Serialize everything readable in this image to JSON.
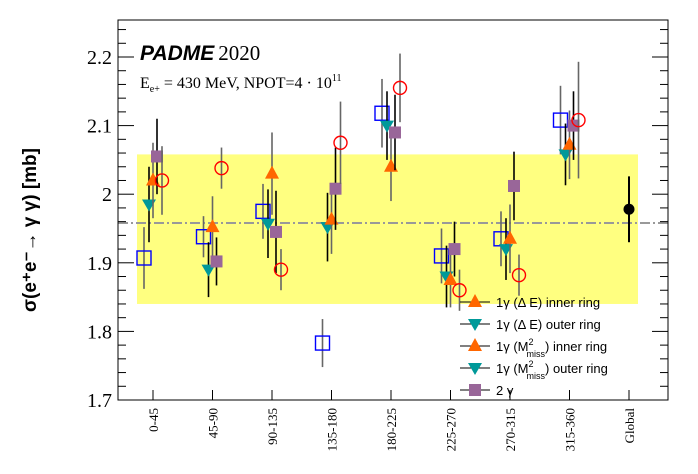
{
  "chart_data": {
    "type": "scatter",
    "title": "PADME",
    "title_year": "2020",
    "subtitle_prefix": "E",
    "subtitle_sub": "e+",
    "subtitle_main": " = 430 MeV, NPOT=4 · 10",
    "subtitle_sup": "11",
    "ylabel": "σ(e⁺e⁻→ γ γ) [mb]",
    "ylim": [
      1.7,
      2.25
    ],
    "yticks": [
      "1.7",
      "1.8",
      "1.9",
      "2",
      "2.1",
      "2.2"
    ],
    "categories": [
      "0-45",
      "45-90",
      "90-135",
      "135-180",
      "180-225",
      "225-270",
      "270-315",
      "315-360",
      "Global"
    ],
    "band": [
      1.84,
      2.058
    ],
    "band_color": "#ffff80",
    "reference_line": 1.958,
    "series": [
      {
        "marker": "open-square",
        "color": "#0000ff",
        "values": [
          1.907,
          1.938,
          1.975,
          1.783,
          2.118,
          1.91,
          1.935,
          2.108
        ],
        "errors": [
          0.045,
          0.03,
          0.04,
          0.035,
          0.05,
          0.04,
          0.04,
          0.05
        ]
      },
      {
        "marker": "triangle-down",
        "color": "#009999",
        "values": [
          1.985,
          1.89,
          1.957,
          1.952,
          2.1,
          1.88,
          1.92,
          2.058
        ],
        "errors": [
          0.055,
          0.04,
          0.05,
          0.05,
          0.05,
          0.045,
          0.045,
          0.045
        ]
      },
      {
        "marker": "triangle-up",
        "color": "#ff6600",
        "values": [
          2.02,
          1.952,
          2.03,
          1.963,
          2.04,
          1.875,
          1.935,
          2.072
        ],
        "errors": [
          0.055,
          0.045,
          0.06,
          0.05,
          0.05,
          0.04,
          0.05,
          0.05
        ]
      },
      {
        "marker": "square",
        "color": "#996699",
        "values": [
          2.055,
          1.902,
          1.945,
          2.008,
          2.09,
          1.92,
          2.012,
          2.1
        ],
        "errors": [
          0.055,
          0.035,
          0.06,
          0.06,
          0.055,
          0.04,
          0.05,
          0.05
        ]
      },
      {
        "marker": "open-circle",
        "color": "#ff0000",
        "values": [
          2.02,
          2.038,
          1.89,
          2.075,
          2.155,
          1.86,
          1.882,
          2.108
        ],
        "errors": [
          0.05,
          0.03,
          0.03,
          0.06,
          0.05,
          0.03,
          0.03,
          0.085
        ]
      }
    ],
    "global": {
      "value": 1.978,
      "error": 0.048,
      "color": "#000000"
    },
    "legend": {
      "placement": "bottom-right",
      "entries": [
        {
          "pre": "1γ (Δ E) inner ring",
          "sup": "",
          "sub": "",
          "post": "",
          "marker": "triangle-up",
          "color": "#ff6600"
        },
        {
          "pre": "1γ (Δ E) outer ring",
          "sup": "",
          "sub": "",
          "post": "",
          "marker": "triangle-down",
          "color": "#009999"
        },
        {
          "pre": "1γ (M",
          "sup": "2",
          "sub": "miss",
          "post": ") inner ring",
          "marker": "triangle-up",
          "color": "#ff6600"
        },
        {
          "pre": "1γ (M",
          "sup": "2",
          "sub": "miss",
          "post": ") outer ring",
          "marker": "triangle-down",
          "color": "#009999"
        },
        {
          "pre": "2 γ",
          "sup": "",
          "sub": "",
          "post": "",
          "marker": "square",
          "color": "#996699"
        }
      ]
    }
  }
}
